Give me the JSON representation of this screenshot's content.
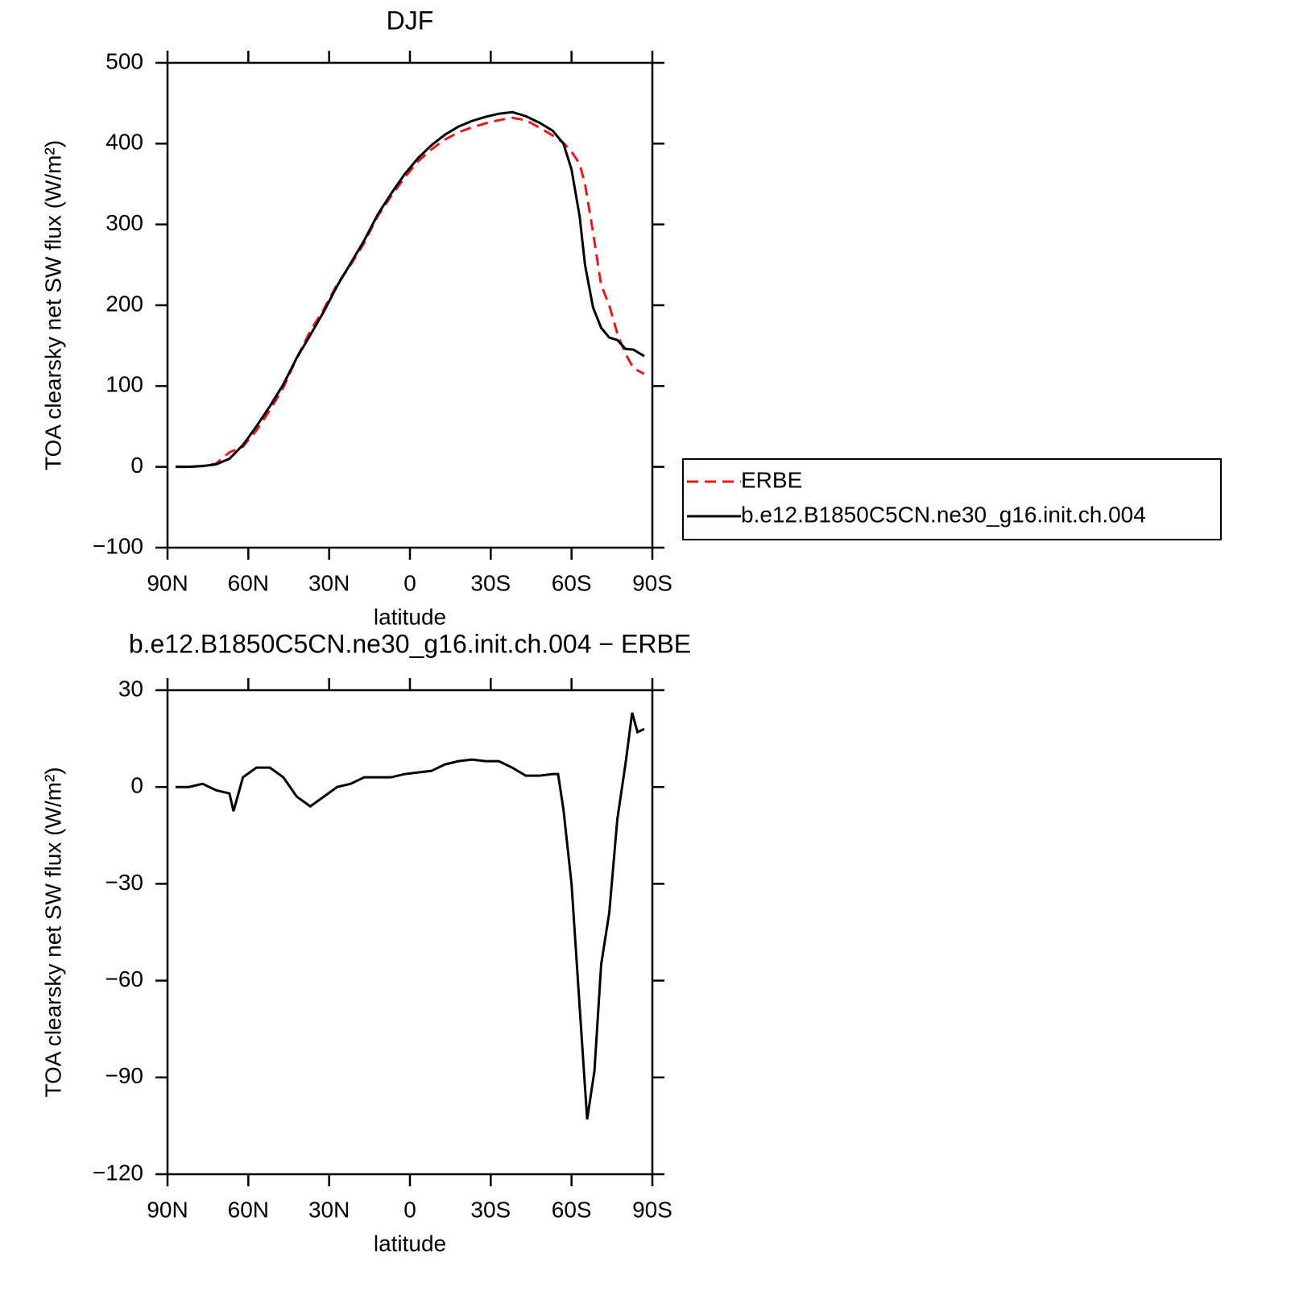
{
  "chart_data": [
    {
      "type": "line",
      "title": "DJF",
      "xlabel": "latitude",
      "ylabel": "TOA clearsky net SW flux (W/m²)",
      "x": [
        87,
        82,
        77,
        72,
        67,
        62,
        57,
        52,
        47,
        42,
        37,
        32,
        27,
        22,
        17,
        12,
        7,
        2,
        -3,
        -8,
        -13,
        -18,
        -23,
        -28,
        -33,
        -38,
        -43,
        -48,
        -53,
        -57,
        -60,
        -63,
        -65,
        -68,
        -71,
        -74,
        -77,
        -80,
        -83,
        -87
      ],
      "series": [
        {
          "name": "ERBE",
          "color": "#e8191c",
          "style": "dashed",
          "values": [
            0,
            0,
            1,
            4,
            18,
            25,
            45,
            70,
            98,
            135,
            168,
            195,
            226,
            250,
            277,
            310,
            335,
            358,
            378,
            393,
            405,
            414,
            420,
            425,
            429,
            432,
            429,
            420,
            410,
            401,
            390,
            375,
            350,
            290,
            225,
            200,
            165,
            140,
            122,
            115
          ]
        },
        {
          "name": "b.e12.B1850C5CN.ne30_g16.init.ch.004",
          "color": "#000000",
          "style": "solid",
          "values": [
            0,
            0,
            1,
            3,
            10,
            27,
            50,
            75,
            102,
            135,
            163,
            192,
            224,
            252,
            280,
            312,
            338,
            362,
            382,
            398,
            411,
            421,
            428,
            433,
            437,
            439,
            434,
            426,
            416,
            400,
            368,
            310,
            250,
            197,
            172,
            160,
            157,
            146,
            145,
            137
          ]
        }
      ],
      "xlim": [
        90,
        -90
      ],
      "xticks": [
        {
          "value": 90,
          "label": "90N"
        },
        {
          "value": 60,
          "label": "60N"
        },
        {
          "value": 30,
          "label": "30N"
        },
        0,
        {
          "value": -30,
          "label": "30S"
        },
        {
          "value": -60,
          "label": "60S"
        },
        {
          "value": -90,
          "label": "90S"
        }
      ],
      "ylim": [
        -100,
        500
      ],
      "yticks": [
        {
          "value": -100,
          "label": "−100"
        },
        0,
        100,
        200,
        300,
        400,
        500
      ],
      "legend": "right"
    },
    {
      "type": "line",
      "title": "b.e12.B1850C5CN.ne30_g16.init.ch.004 − ERBE",
      "xlabel": "latitude",
      "ylabel": "TOA clearsky net SW flux (W/m²)",
      "x": [
        87,
        82,
        77,
        72,
        67,
        65.5,
        62,
        57,
        52,
        47,
        42,
        37,
        32,
        27,
        22,
        17,
        12,
        7,
        2,
        -3,
        -8,
        -13,
        -18,
        -23,
        -28,
        -33,
        -38,
        -43,
        -48,
        -53,
        -55,
        -57,
        -60,
        -63,
        -65.8,
        -68.5,
        -71,
        -74,
        -77,
        -80,
        -82.5,
        -84.5,
        -87
      ],
      "values": [
        0,
        0,
        1,
        -1,
        -2,
        -7.5,
        3,
        6,
        6,
        3,
        -3,
        -6,
        -3,
        0,
        1,
        3,
        3,
        3,
        4,
        4.5,
        5,
        7,
        8,
        8.5,
        8,
        8,
        6,
        3.5,
        3.5,
        4,
        4,
        -7,
        -30,
        -68,
        -103,
        -88,
        -55,
        -39,
        -10,
        7,
        23,
        17,
        18
      ],
      "color": "#000000",
      "xlim": [
        90,
        -90
      ],
      "xticks": [
        {
          "value": 90,
          "label": "90N"
        },
        {
          "value": 60,
          "label": "60N"
        },
        {
          "value": 30,
          "label": "30N"
        },
        0,
        {
          "value": -30,
          "label": "30S"
        },
        {
          "value": -60,
          "label": "60S"
        },
        {
          "value": -90,
          "label": "90S"
        }
      ],
      "ylim": [
        -120,
        30
      ],
      "yticks": [
        {
          "value": -120,
          "label": "−120"
        },
        {
          "value": -90,
          "label": "−90"
        },
        {
          "value": -60,
          "label": "−60"
        },
        {
          "value": -30,
          "label": "−30"
        },
        0,
        30
      ]
    }
  ]
}
